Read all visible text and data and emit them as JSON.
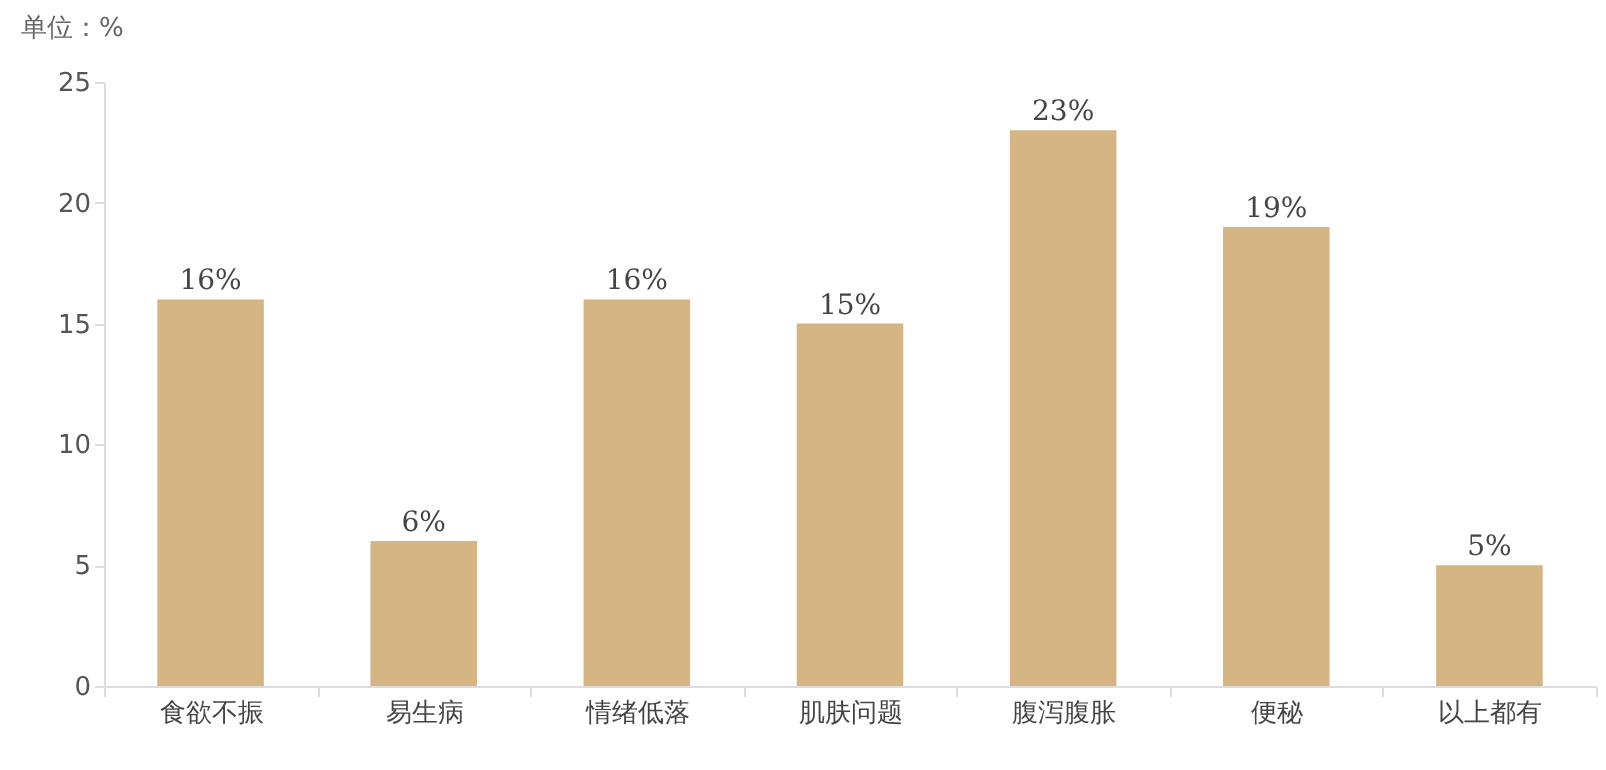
{
  "chart_data": {
    "type": "bar",
    "ylabel": "单位：%",
    "categories": [
      "食欲不振",
      "易生病",
      "情绪低落",
      "肌肤问题",
      "腹泻腹胀",
      "便秘",
      "以上都有"
    ],
    "values": [
      16,
      6,
      16,
      15,
      23,
      19,
      5
    ],
    "value_labels": [
      "16%",
      "6%",
      "16%",
      "15%",
      "23%",
      "19%",
      "5%"
    ],
    "color": "#d5b584",
    "ylim": [
      0,
      25
    ],
    "yticks": [
      0,
      5,
      10,
      15,
      20,
      25
    ],
    "grid": false
  }
}
